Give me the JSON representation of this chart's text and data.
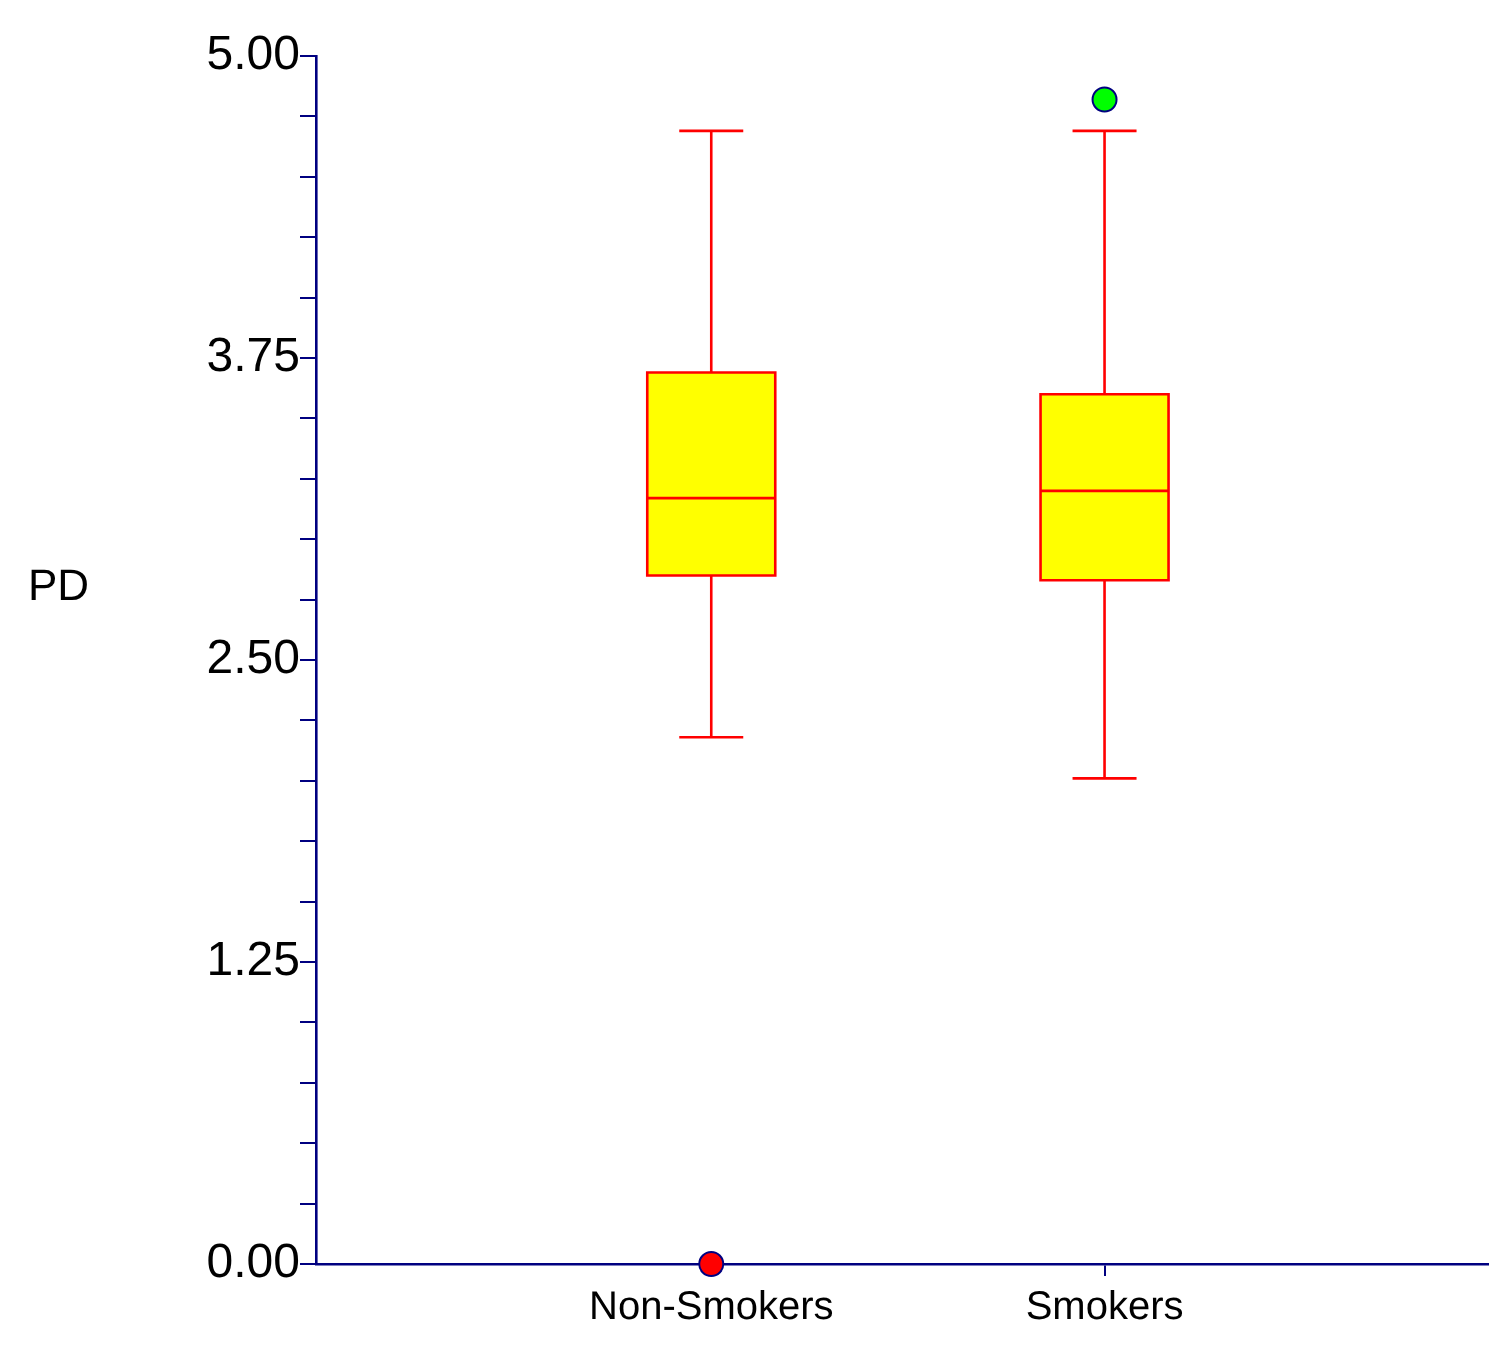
{
  "chart_data": {
    "type": "box",
    "ylabel": "PD",
    "categories": [
      "Non-Smokers",
      "Smokers"
    ],
    "series": [
      {
        "color": "#ffff00",
        "boxes": [
          {
            "low": 2.18,
            "q1": 2.85,
            "median": 3.17,
            "q3": 3.69,
            "high": 4.69
          },
          {
            "low": 2.01,
            "q1": 2.83,
            "median": 3.2,
            "q3": 3.6,
            "high": 4.69
          }
        ]
      },
      {
        "type": "scatter",
        "color": "#ff0000",
        "x": [
          "Non-Smokers"
        ],
        "values": [
          0
        ]
      },
      {
        "type": "scatter",
        "color": "#00ff00",
        "x": [
          "Smokers"
        ],
        "values": [
          4.82
        ]
      }
    ],
    "ylim": [
      0,
      5
    ],
    "yticks": [
      {
        "value": 0,
        "label": "0.00"
      },
      {
        "value": 0.25,
        "label": null
      },
      {
        "value": 0.5,
        "label": null
      },
      {
        "value": 0.75,
        "label": null
      },
      {
        "value": 1,
        "label": null
      },
      {
        "value": 1.25,
        "label": "1.25"
      },
      {
        "value": 1.5,
        "label": null
      },
      {
        "value": 1.75,
        "label": null
      },
      {
        "value": 2,
        "label": null
      },
      {
        "value": 2.25,
        "label": null
      },
      {
        "value": 2.5,
        "label": "2.50"
      },
      {
        "value": 2.75,
        "label": null
      },
      {
        "value": 3,
        "label": null
      },
      {
        "value": 3.25,
        "label": null
      },
      {
        "value": 3.5,
        "label": null
      },
      {
        "value": 3.75,
        "label": "3.75"
      },
      {
        "value": 4,
        "label": null
      },
      {
        "value": 4.25,
        "label": null
      },
      {
        "value": 4.5,
        "label": null
      },
      {
        "value": 4.75,
        "label": null
      },
      {
        "value": 5,
        "label": "5.00"
      }
    ],
    "marker": "circle"
  }
}
